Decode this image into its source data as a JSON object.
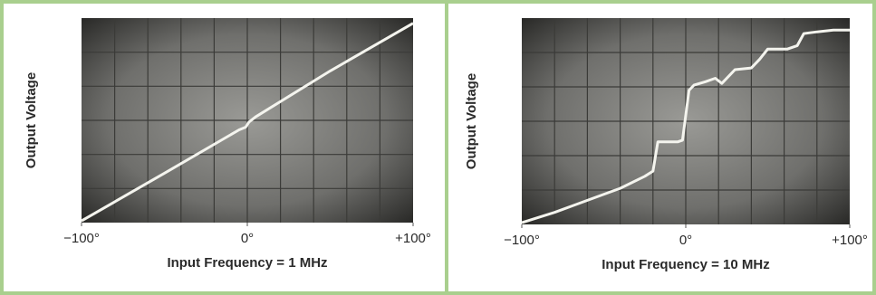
{
  "chart_data": [
    {
      "type": "line",
      "y_label": "Output Voltage",
      "x_label": "Input Frequency = 1 MHz",
      "xlim": [
        -100,
        100
      ],
      "ylim": [
        0,
        6
      ],
      "xticks": [
        {
          "value": -100,
          "label": "−100°"
        },
        {
          "value": 0,
          "label": "0°"
        },
        {
          "value": 100,
          "label": "+100°"
        }
      ],
      "color": "#f4f4ee",
      "x": [
        -100,
        -50,
        -5,
        -1,
        1,
        5,
        50,
        100
      ],
      "values": [
        0.05,
        1.45,
        2.72,
        2.8,
        2.95,
        3.1,
        4.45,
        5.85
      ]
    },
    {
      "type": "line",
      "y_label": "Output Voltage",
      "x_label": "Input Frequency = 10 MHz",
      "xlim": [
        -100,
        100
      ],
      "ylim": [
        0,
        6
      ],
      "xticks": [
        {
          "value": -100,
          "label": "−100°"
        },
        {
          "value": 0,
          "label": "0°"
        },
        {
          "value": 100,
          "label": "+100°"
        }
      ],
      "color": "#f4f4ee",
      "x": [
        -100,
        -80,
        -60,
        -40,
        -25,
        -20,
        -17,
        -5,
        -2,
        2,
        5,
        12,
        18,
        22,
        30,
        40,
        45,
        50,
        62,
        68,
        72,
        80,
        90,
        100
      ],
      "values": [
        0.05,
        0.35,
        0.7,
        1.05,
        1.4,
        1.55,
        2.4,
        2.4,
        2.45,
        3.9,
        4.05,
        4.15,
        4.25,
        4.1,
        4.5,
        4.55,
        4.8,
        5.1,
        5.1,
        5.2,
        5.55,
        5.6,
        5.65,
        5.65
      ]
    }
  ]
}
